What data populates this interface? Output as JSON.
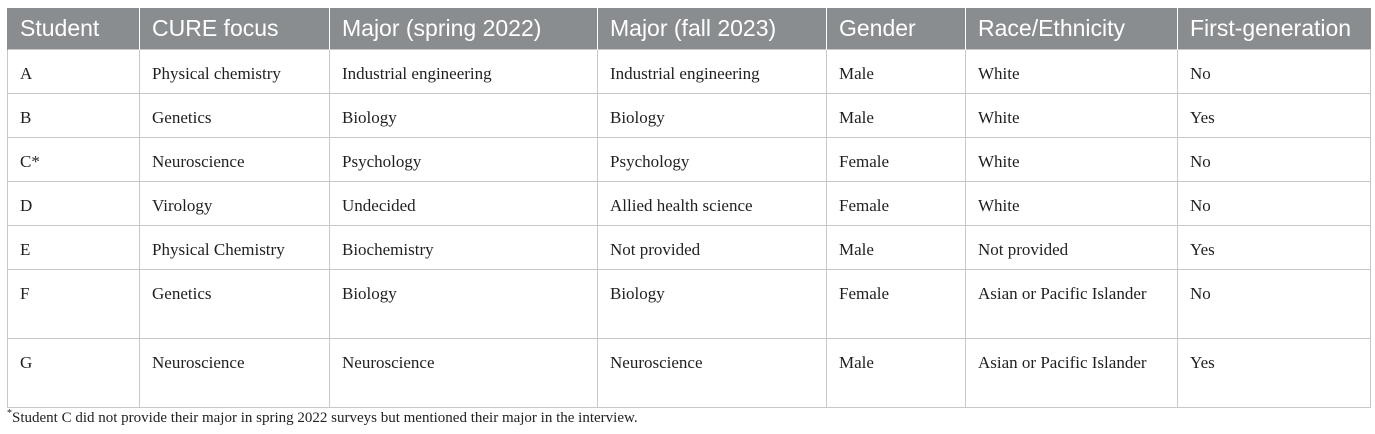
{
  "table": {
    "headers": [
      "Student",
      "CURE focus",
      "Major (spring 2022)",
      "Major (fall 2023)",
      "Gender",
      "Race/Ethnicity",
      "First-generation"
    ],
    "rows": [
      [
        "A",
        "Physical chemistry",
        "Industrial engineering",
        "Industrial engineering",
        "Male",
        "White",
        "No"
      ],
      [
        "B",
        "Genetics",
        "Biology",
        "Biology",
        "Male",
        "White",
        "Yes"
      ],
      [
        "C*",
        "Neuroscience",
        "Psychology",
        "Psychology",
        "Female",
        "White",
        "No"
      ],
      [
        "D",
        "Virology",
        "Undecided",
        "Allied health science",
        "Female",
        "White",
        "No"
      ],
      [
        "E",
        "Physical Chemistry",
        "Biochemistry",
        "Not provided",
        "Male",
        "Not provided",
        "Yes"
      ],
      [
        "F",
        "Genetics",
        "Biology",
        "Biology",
        "Female",
        "Asian or Pacific Islander",
        "No"
      ],
      [
        "G",
        "Neuroscience",
        "Neuroscience",
        "Neuroscience",
        "Male",
        "Asian or Pacific Islander",
        "Yes"
      ]
    ]
  },
  "footnote": {
    "marker": "*",
    "text": "Student C did not provide their major in spring 2022 surveys but mentioned their major in the interview."
  }
}
